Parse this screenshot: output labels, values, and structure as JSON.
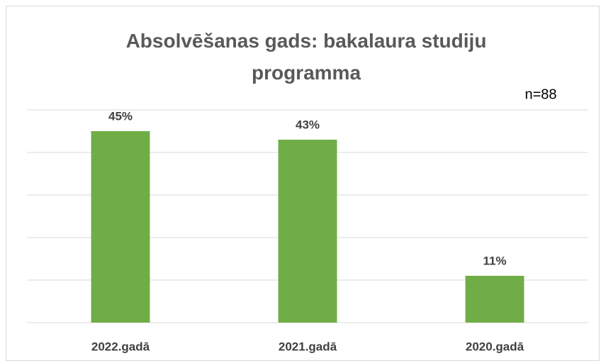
{
  "chart_data": {
    "type": "bar",
    "title": "Absolvēšanas gads: bakalaura studiju programma",
    "annotation": "n=88",
    "categories": [
      "2022.gadā",
      "2021.gadā",
      "2020.gadā"
    ],
    "values": [
      45,
      43,
      11
    ],
    "value_labels": [
      "45%",
      "43%",
      "11%"
    ],
    "color": "#70ad47",
    "ylim": [
      0,
      50
    ],
    "yticks": [
      0,
      10,
      20,
      30,
      40,
      50
    ],
    "grid": true
  }
}
